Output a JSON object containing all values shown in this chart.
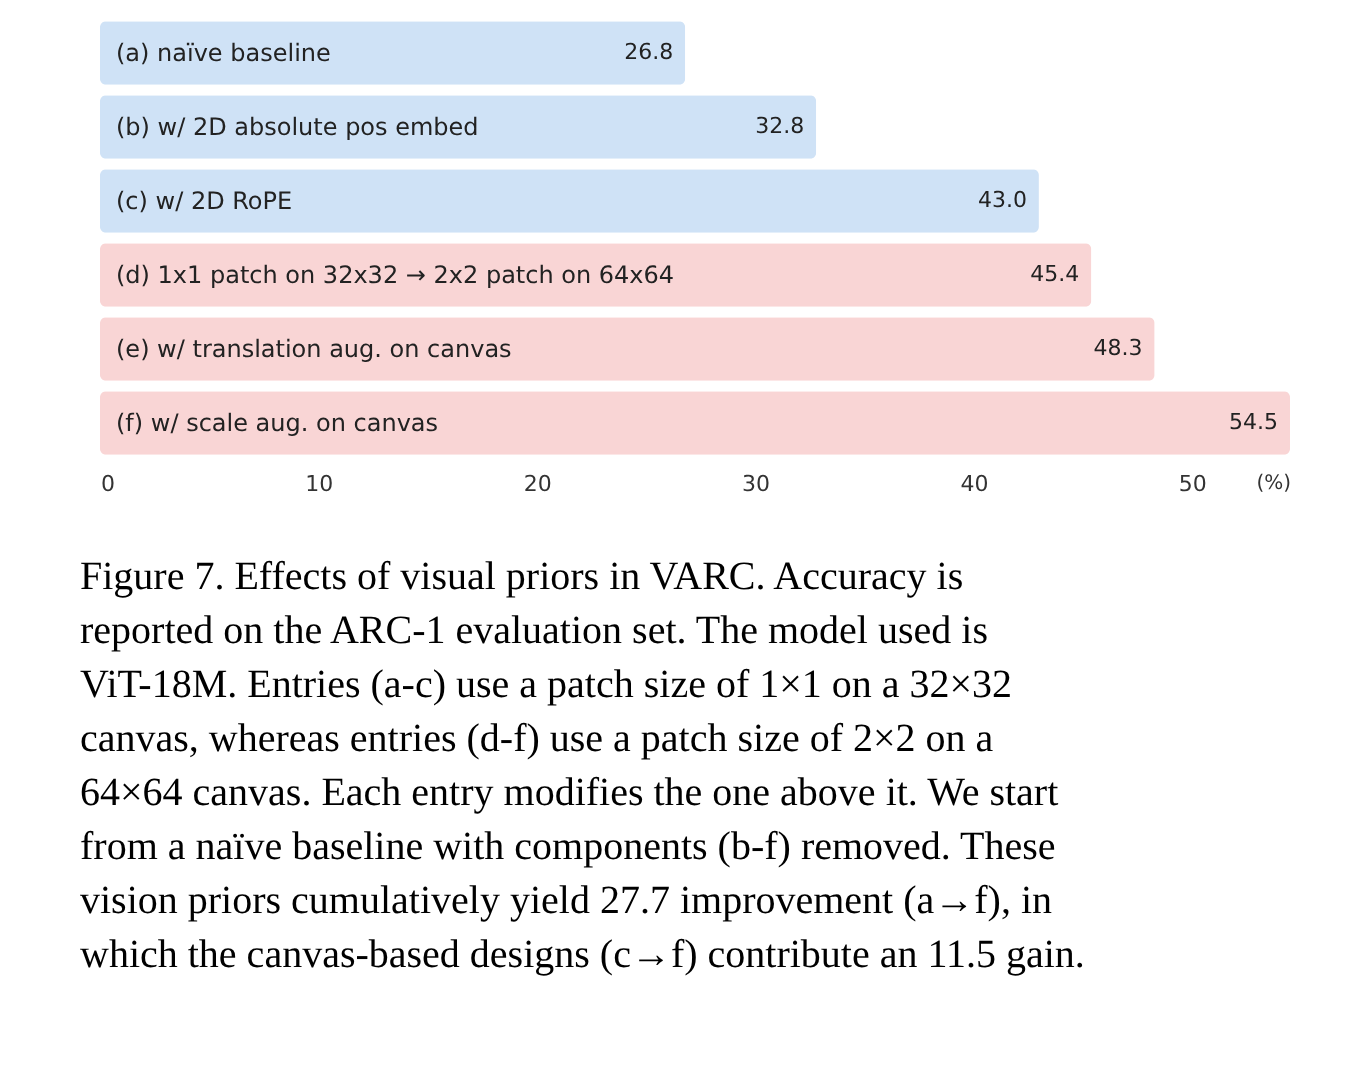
{
  "chart_data": {
    "type": "bar",
    "orientation": "horizontal",
    "categories": [
      "(a) naïve baseline",
      "(b) w/ 2D absolute pos embed",
      "(c) w/ 2D RoPE",
      "(d) 1x1 patch on 32x32  → 2x2 patch on 64x64",
      "(e) w/ translation aug. on canvas",
      "(f) w/ scale aug. on canvas"
    ],
    "values": [
      26.8,
      32.8,
      43.0,
      45.4,
      48.3,
      54.5
    ],
    "colors": [
      "#cfe2f6",
      "#cfe2f6",
      "#cfe2f6",
      "#f9d5d5",
      "#f9d5d5",
      "#f9d5d5"
    ],
    "value_labels": [
      "26.8",
      "32.8",
      "43.0",
      "45.4",
      "48.3",
      "54.5"
    ],
    "xlim": [
      0,
      54.5
    ],
    "xticks": [
      0,
      10,
      20,
      30,
      40,
      50
    ],
    "xlabel": "(%)",
    "grid": false,
    "legend": false,
    "annotations": [
      "Figure 7. Effects of visual priors in VARC. Accuracy is reported on the ARC-1 evaluation set. The model used is ViT-18M. Entries (a-c) use a patch size of 1×1 on a 32×32 canvas, whereas entries (d-f) use a patch size of 2×2 on a 64×64 canvas. Each entry modifies the one above it. We start from a naïve baseline with components (b-f) removed. These vision priors cumulatively yield 27.7 improvement (a→f), in which the canvas-based designs (c→f) contribute an 11.5 gain."
    ]
  }
}
